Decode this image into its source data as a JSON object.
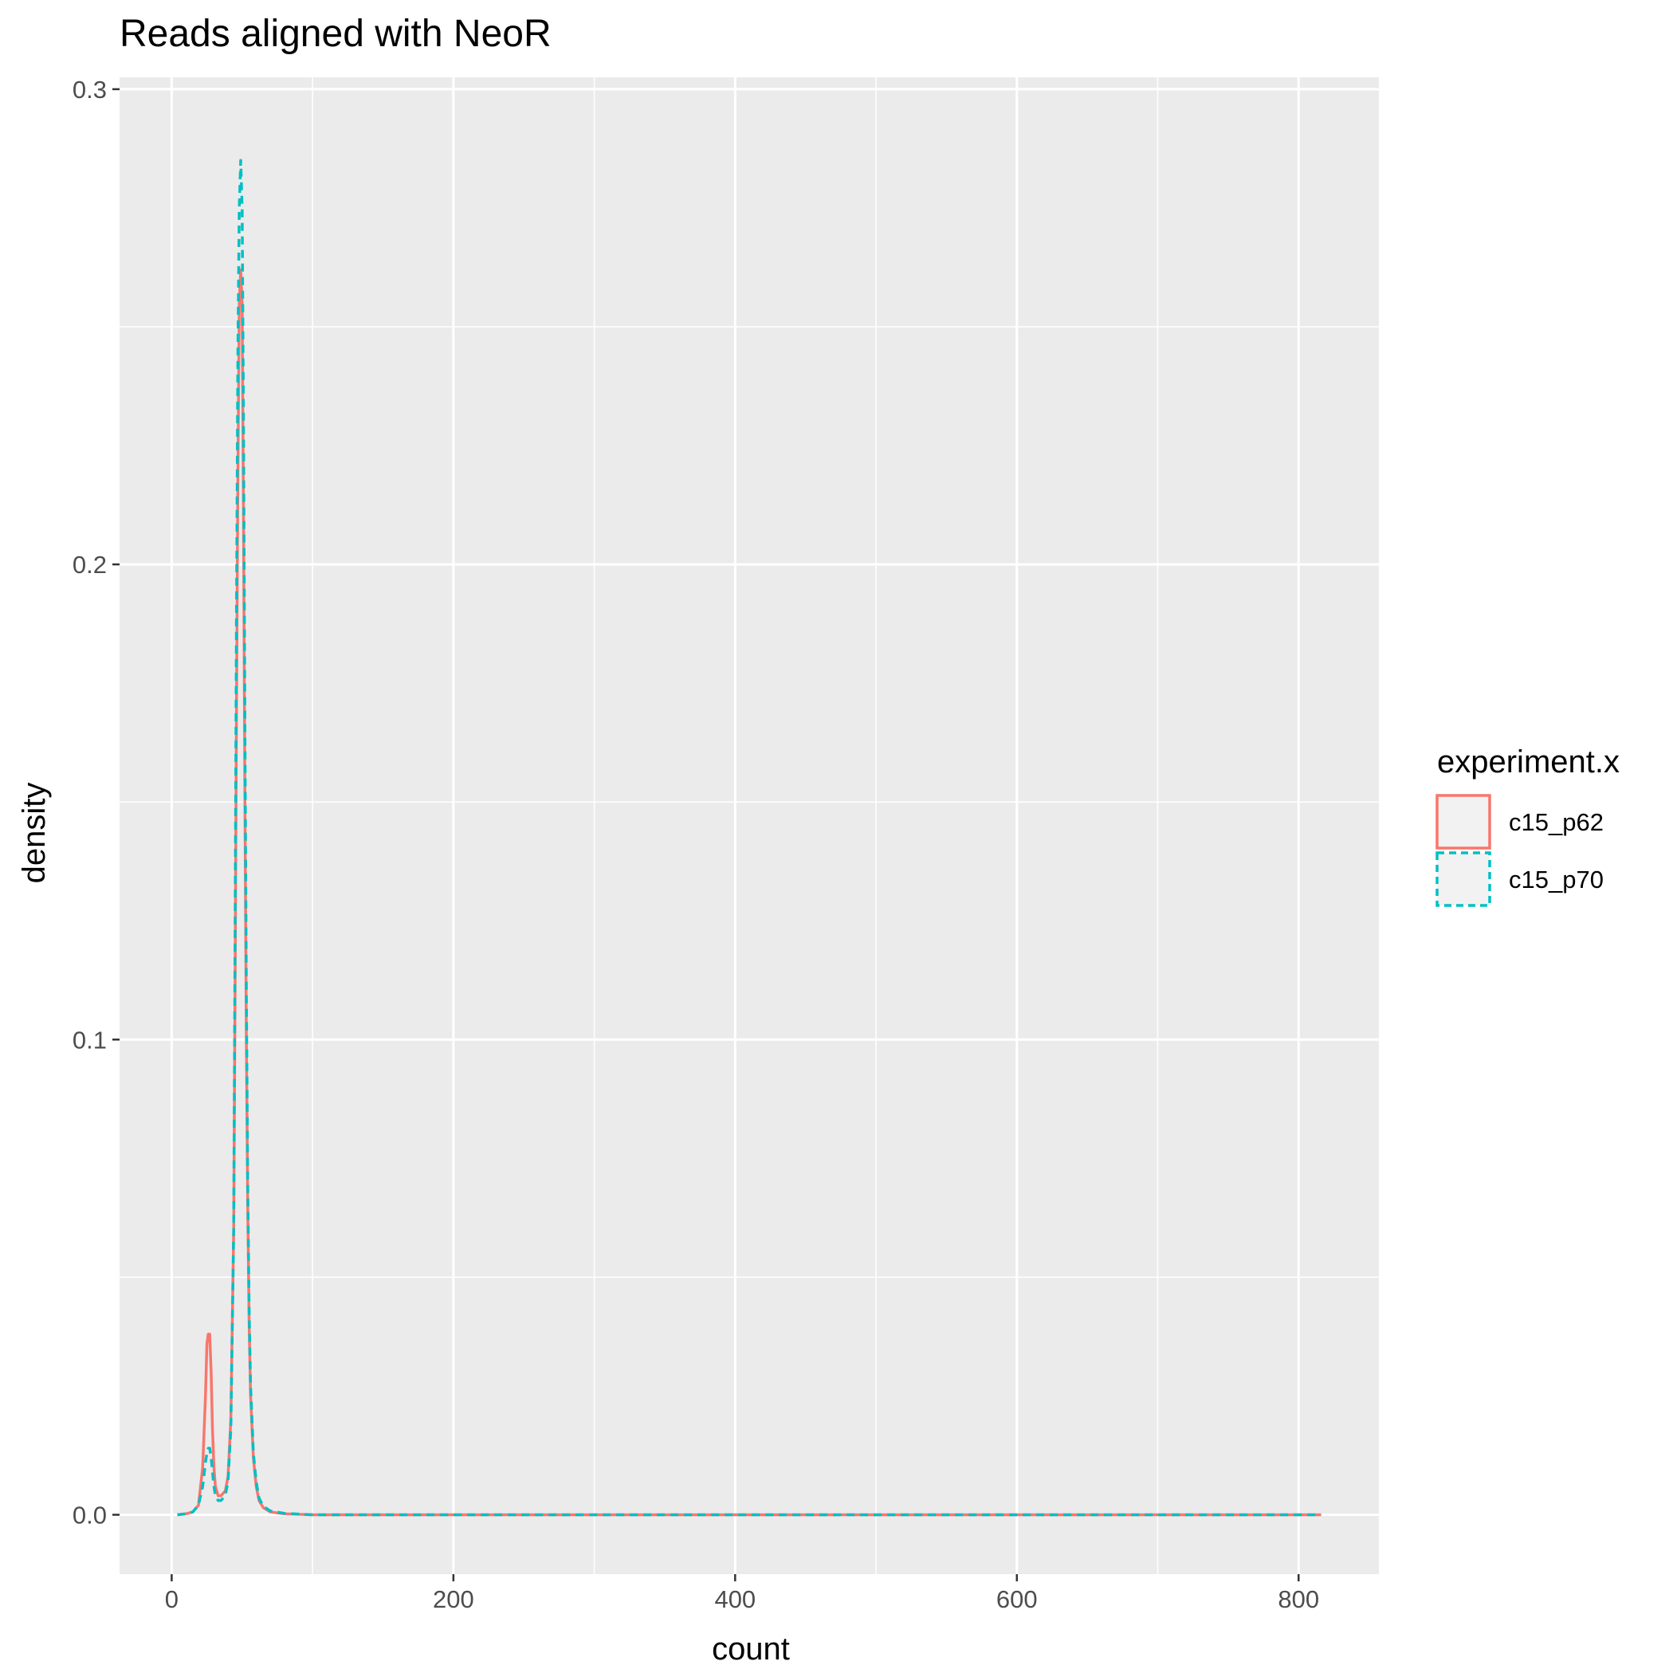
{
  "chart_data": {
    "type": "line",
    "title": "Reads aligned with NeoR",
    "xlabel": "count",
    "ylabel": "density",
    "xlim": [
      -37,
      857
    ],
    "ylim": [
      -0.0125,
      0.3025
    ],
    "x_ticks": [
      0,
      200,
      400,
      600,
      800
    ],
    "x_tick_labels": [
      "0",
      "200",
      "400",
      "600",
      "800"
    ],
    "y_ticks": [
      0.0,
      0.1,
      0.2,
      0.3
    ],
    "y_tick_labels": [
      "0.0",
      "0.1",
      "0.2",
      "0.3"
    ],
    "grid": true,
    "legend": {
      "title": "experiment.x",
      "placement": "right"
    },
    "series": [
      {
        "name": "c15_p62",
        "color": "#F8766D",
        "linetype": "solid",
        "x": [
          4,
          10,
          15,
          19,
          22,
          24,
          25,
          26,
          27,
          28,
          29,
          30,
          31,
          33,
          35,
          38,
          40,
          42,
          44,
          45,
          46,
          47,
          48,
          49,
          50,
          51,
          52,
          53,
          54,
          55,
          56,
          58,
          60,
          62,
          65,
          70,
          80,
          100,
          200,
          400,
          600,
          816
        ],
        "y": [
          0.0,
          0.0002,
          0.0006,
          0.002,
          0.01,
          0.025,
          0.036,
          0.038,
          0.038,
          0.03,
          0.018,
          0.01,
          0.006,
          0.004,
          0.004,
          0.005,
          0.008,
          0.02,
          0.06,
          0.11,
          0.17,
          0.22,
          0.255,
          0.262,
          0.255,
          0.21,
          0.15,
          0.1,
          0.065,
          0.04,
          0.025,
          0.012,
          0.006,
          0.003,
          0.0015,
          0.0006,
          0.0002,
          0.0,
          0.0,
          0.0,
          0.0,
          0.0
        ]
      },
      {
        "name": "c15_p70",
        "color": "#00BFC4",
        "linetype": "dashed",
        "x": [
          4,
          10,
          15,
          19,
          22,
          24,
          25,
          26,
          27,
          28,
          29,
          30,
          31,
          33,
          35,
          38,
          40,
          42,
          44,
          45,
          46,
          47,
          48,
          49,
          50,
          51,
          52,
          53,
          54,
          55,
          56,
          58,
          60,
          62,
          65,
          70,
          80,
          100,
          200,
          400,
          600,
          816
        ],
        "y": [
          0.0,
          0.0002,
          0.0006,
          0.002,
          0.006,
          0.011,
          0.013,
          0.014,
          0.014,
          0.012,
          0.009,
          0.006,
          0.004,
          0.003,
          0.003,
          0.004,
          0.007,
          0.018,
          0.06,
          0.12,
          0.19,
          0.245,
          0.275,
          0.285,
          0.275,
          0.23,
          0.165,
          0.11,
          0.07,
          0.043,
          0.027,
          0.013,
          0.007,
          0.0035,
          0.0018,
          0.0008,
          0.0003,
          0.0,
          0.0,
          0.0,
          0.0,
          0.0
        ]
      }
    ]
  }
}
